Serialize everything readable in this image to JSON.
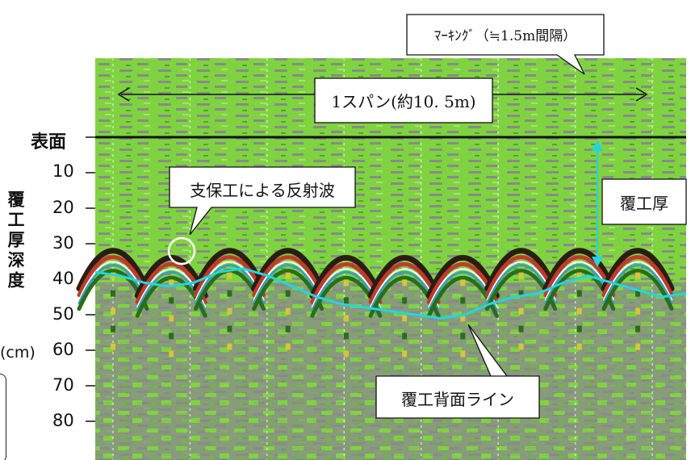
{
  "chart_data": {
    "type": "radargram",
    "labels": {
      "surface": "表面",
      "y_axis": "覆工厚深度",
      "y_unit": "(cm)",
      "marking_callout": "ﾏｰｷﾝｸﾞ（≒1.5m間隔）",
      "span_label": "1スパン(約10. 5m)",
      "support_reflection": "支保工による反射波",
      "lining_thickness": "覆工厚",
      "lining_back_line": "覆工背面ライン"
    },
    "y_ticks": [
      "10",
      "20",
      "30",
      "40",
      "50",
      "60",
      "70",
      "80"
    ],
    "y_range_cm": [
      0,
      90
    ],
    "back_line_depth_cm": [
      38,
      39,
      41,
      42,
      41,
      38,
      37,
      39,
      42,
      45,
      47,
      48,
      49,
      50,
      51,
      50,
      47,
      45,
      44,
      41,
      39,
      41,
      43,
      45,
      44
    ],
    "reflection_apex_depth_cm": [
      29,
      31,
      29,
      29,
      31,
      31,
      31,
      29,
      29,
      29
    ],
    "colors": {
      "background_green": "#7fd340",
      "background_gray": "#8a8a8a",
      "surface_line": "#111111",
      "back_line": "#1fd6e6",
      "thickness_arrow": "#1fd6e6",
      "reflection_red": "#c23a2a",
      "reflection_dark": "#2a1e14",
      "highlight_circle": "#ffffff"
    }
  }
}
